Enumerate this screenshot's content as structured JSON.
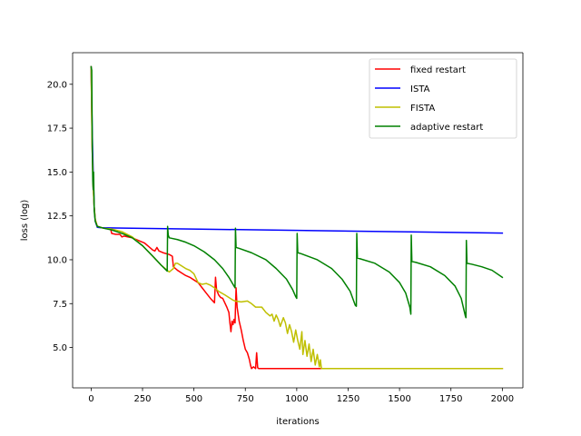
{
  "chart_data": {
    "type": "line",
    "title": "",
    "xlabel": "iterations",
    "ylabel": "loss (log)",
    "xlim": [
      -90,
      2100
    ],
    "ylim": [
      2.7,
      21.8
    ],
    "xticks": [
      0,
      250,
      500,
      750,
      1000,
      1250,
      1500,
      1750,
      2000
    ],
    "yticks": [
      5.0,
      7.5,
      10.0,
      12.5,
      15.0,
      17.5,
      20.0
    ],
    "xtick_labels": [
      "0",
      "250",
      "500",
      "750",
      "1000",
      "1250",
      "1500",
      "1750",
      "2000"
    ],
    "ytick_labels": [
      "5.0",
      "7.5",
      "10.0",
      "12.5",
      "15.0",
      "17.5",
      "20.0"
    ],
    "grid": false,
    "legend_position": "top-right",
    "series": [
      {
        "name": "fixed restart",
        "color": "#ff0000",
        "points": [
          [
            0,
            21.0
          ],
          [
            5,
            16.5
          ],
          [
            10,
            14.2
          ],
          [
            15,
            13.0
          ],
          [
            20,
            12.3
          ],
          [
            30,
            11.9
          ],
          [
            60,
            11.8
          ],
          [
            95,
            11.75
          ],
          [
            100,
            11.5
          ],
          [
            120,
            11.45
          ],
          [
            140,
            11.45
          ],
          [
            150,
            11.3
          ],
          [
            160,
            11.35
          ],
          [
            180,
            11.3
          ],
          [
            200,
            11.25
          ],
          [
            240,
            11.05
          ],
          [
            260,
            10.95
          ],
          [
            280,
            10.75
          ],
          [
            300,
            10.55
          ],
          [
            310,
            10.5
          ],
          [
            320,
            10.7
          ],
          [
            330,
            10.5
          ],
          [
            350,
            10.4
          ],
          [
            380,
            10.3
          ],
          [
            395,
            10.2
          ],
          [
            400,
            9.6
          ],
          [
            420,
            9.4
          ],
          [
            440,
            9.25
          ],
          [
            460,
            9.1
          ],
          [
            480,
            9.0
          ],
          [
            500,
            8.85
          ],
          [
            520,
            8.7
          ],
          [
            540,
            8.4
          ],
          [
            560,
            8.1
          ],
          [
            580,
            7.8
          ],
          [
            600,
            7.55
          ],
          [
            605,
            9.0
          ],
          [
            610,
            8.3
          ],
          [
            620,
            8.0
          ],
          [
            630,
            7.85
          ],
          [
            640,
            7.8
          ],
          [
            660,
            7.3
          ],
          [
            670,
            7.0
          ],
          [
            675,
            6.4
          ],
          [
            680,
            5.9
          ],
          [
            685,
            6.5
          ],
          [
            690,
            6.3
          ],
          [
            695,
            6.6
          ],
          [
            700,
            6.4
          ],
          [
            705,
            8.4
          ],
          [
            710,
            7.3
          ],
          [
            720,
            6.5
          ],
          [
            730,
            6.0
          ],
          [
            740,
            5.4
          ],
          [
            750,
            4.9
          ],
          [
            760,
            4.7
          ],
          [
            770,
            4.3
          ],
          [
            775,
            4.0
          ],
          [
            780,
            3.8
          ],
          [
            790,
            3.9
          ],
          [
            800,
            3.8
          ],
          [
            805,
            4.7
          ],
          [
            810,
            3.85
          ],
          [
            815,
            3.8
          ],
          [
            1130,
            3.8
          ],
          [
            2000,
            3.8
          ]
        ]
      },
      {
        "name": "ISTA",
        "color": "#0000ff",
        "points": [
          [
            0,
            21.0
          ],
          [
            5,
            17.5
          ],
          [
            10,
            15.0
          ],
          [
            15,
            13.0
          ],
          [
            20,
            12.2
          ],
          [
            30,
            11.85
          ],
          [
            50,
            11.82
          ],
          [
            2000,
            11.52
          ]
        ]
      },
      {
        "name": "FISTA",
        "color": "#bfbf00",
        "points": [
          [
            0,
            21.0
          ],
          [
            5,
            16.5
          ],
          [
            10,
            14.2
          ],
          [
            15,
            13.0
          ],
          [
            20,
            12.3
          ],
          [
            30,
            11.9
          ],
          [
            60,
            11.8
          ],
          [
            100,
            11.75
          ],
          [
            150,
            11.6
          ],
          [
            200,
            11.3
          ],
          [
            250,
            10.8
          ],
          [
            300,
            10.2
          ],
          [
            340,
            9.7
          ],
          [
            370,
            9.4
          ],
          [
            380,
            9.3
          ],
          [
            400,
            9.5
          ],
          [
            410,
            9.8
          ],
          [
            420,
            9.8
          ],
          [
            440,
            9.65
          ],
          [
            460,
            9.5
          ],
          [
            480,
            9.4
          ],
          [
            500,
            9.2
          ],
          [
            520,
            8.7
          ],
          [
            540,
            8.6
          ],
          [
            560,
            8.65
          ],
          [
            580,
            8.55
          ],
          [
            600,
            8.4
          ],
          [
            620,
            8.2
          ],
          [
            650,
            8.0
          ],
          [
            670,
            7.85
          ],
          [
            690,
            7.7
          ],
          [
            700,
            7.65
          ],
          [
            730,
            7.6
          ],
          [
            760,
            7.65
          ],
          [
            780,
            7.5
          ],
          [
            800,
            7.3
          ],
          [
            830,
            7.3
          ],
          [
            850,
            7.0
          ],
          [
            870,
            6.8
          ],
          [
            880,
            6.9
          ],
          [
            890,
            6.5
          ],
          [
            900,
            6.85
          ],
          [
            910,
            6.6
          ],
          [
            920,
            6.2
          ],
          [
            935,
            6.7
          ],
          [
            945,
            6.4
          ],
          [
            955,
            5.8
          ],
          [
            965,
            6.3
          ],
          [
            975,
            5.9
          ],
          [
            985,
            5.3
          ],
          [
            995,
            6.0
          ],
          [
            1005,
            5.4
          ],
          [
            1015,
            4.9
          ],
          [
            1025,
            5.9
          ],
          [
            1030,
            4.6
          ],
          [
            1040,
            5.4
          ],
          [
            1050,
            4.5
          ],
          [
            1060,
            5.2
          ],
          [
            1070,
            4.2
          ],
          [
            1080,
            4.9
          ],
          [
            1090,
            4.0
          ],
          [
            1100,
            4.6
          ],
          [
            1110,
            3.9
          ],
          [
            1115,
            4.3
          ],
          [
            1120,
            3.8
          ],
          [
            2000,
            3.8
          ]
        ]
      },
      {
        "name": "adaptive restart",
        "color": "#008000",
        "points": [
          [
            0,
            21.0
          ],
          [
            3,
            20.8
          ],
          [
            6,
            16.0
          ],
          [
            8,
            14.5
          ],
          [
            10,
            14.0
          ],
          [
            12,
            15.0
          ],
          [
            15,
            12.8
          ],
          [
            20,
            12.2
          ],
          [
            30,
            11.9
          ],
          [
            60,
            11.8
          ],
          [
            100,
            11.7
          ],
          [
            150,
            11.5
          ],
          [
            200,
            11.25
          ],
          [
            250,
            10.8
          ],
          [
            300,
            10.2
          ],
          [
            340,
            9.7
          ],
          [
            370,
            9.35
          ],
          [
            372,
            11.9
          ],
          [
            375,
            11.4
          ],
          [
            380,
            11.25
          ],
          [
            420,
            11.15
          ],
          [
            460,
            11.0
          ],
          [
            500,
            10.8
          ],
          [
            550,
            10.45
          ],
          [
            600,
            10.0
          ],
          [
            640,
            9.5
          ],
          [
            670,
            9.0
          ],
          [
            690,
            8.6
          ],
          [
            700,
            8.4
          ],
          [
            702,
            11.8
          ],
          [
            705,
            10.7
          ],
          [
            720,
            10.65
          ],
          [
            780,
            10.4
          ],
          [
            850,
            10.0
          ],
          [
            900,
            9.5
          ],
          [
            950,
            8.9
          ],
          [
            980,
            8.3
          ],
          [
            995,
            7.9
          ],
          [
            1000,
            7.8
          ],
          [
            1002,
            11.5
          ],
          [
            1005,
            10.4
          ],
          [
            1020,
            10.35
          ],
          [
            1100,
            10.0
          ],
          [
            1170,
            9.5
          ],
          [
            1220,
            8.9
          ],
          [
            1260,
            8.2
          ],
          [
            1285,
            7.4
          ],
          [
            1290,
            7.35
          ],
          [
            1292,
            11.5
          ],
          [
            1295,
            10.1
          ],
          [
            1310,
            10.05
          ],
          [
            1380,
            9.8
          ],
          [
            1450,
            9.3
          ],
          [
            1500,
            8.7
          ],
          [
            1530,
            8.1
          ],
          [
            1550,
            7.3
          ],
          [
            1555,
            6.9
          ],
          [
            1557,
            11.4
          ],
          [
            1560,
            9.9
          ],
          [
            1580,
            9.85
          ],
          [
            1650,
            9.6
          ],
          [
            1720,
            9.1
          ],
          [
            1770,
            8.5
          ],
          [
            1800,
            7.8
          ],
          [
            1820,
            6.8
          ],
          [
            1823,
            6.7
          ],
          [
            1825,
            11.1
          ],
          [
            1828,
            9.8
          ],
          [
            1850,
            9.75
          ],
          [
            1900,
            9.6
          ],
          [
            1950,
            9.4
          ],
          [
            2000,
            9.0
          ]
        ]
      }
    ]
  }
}
